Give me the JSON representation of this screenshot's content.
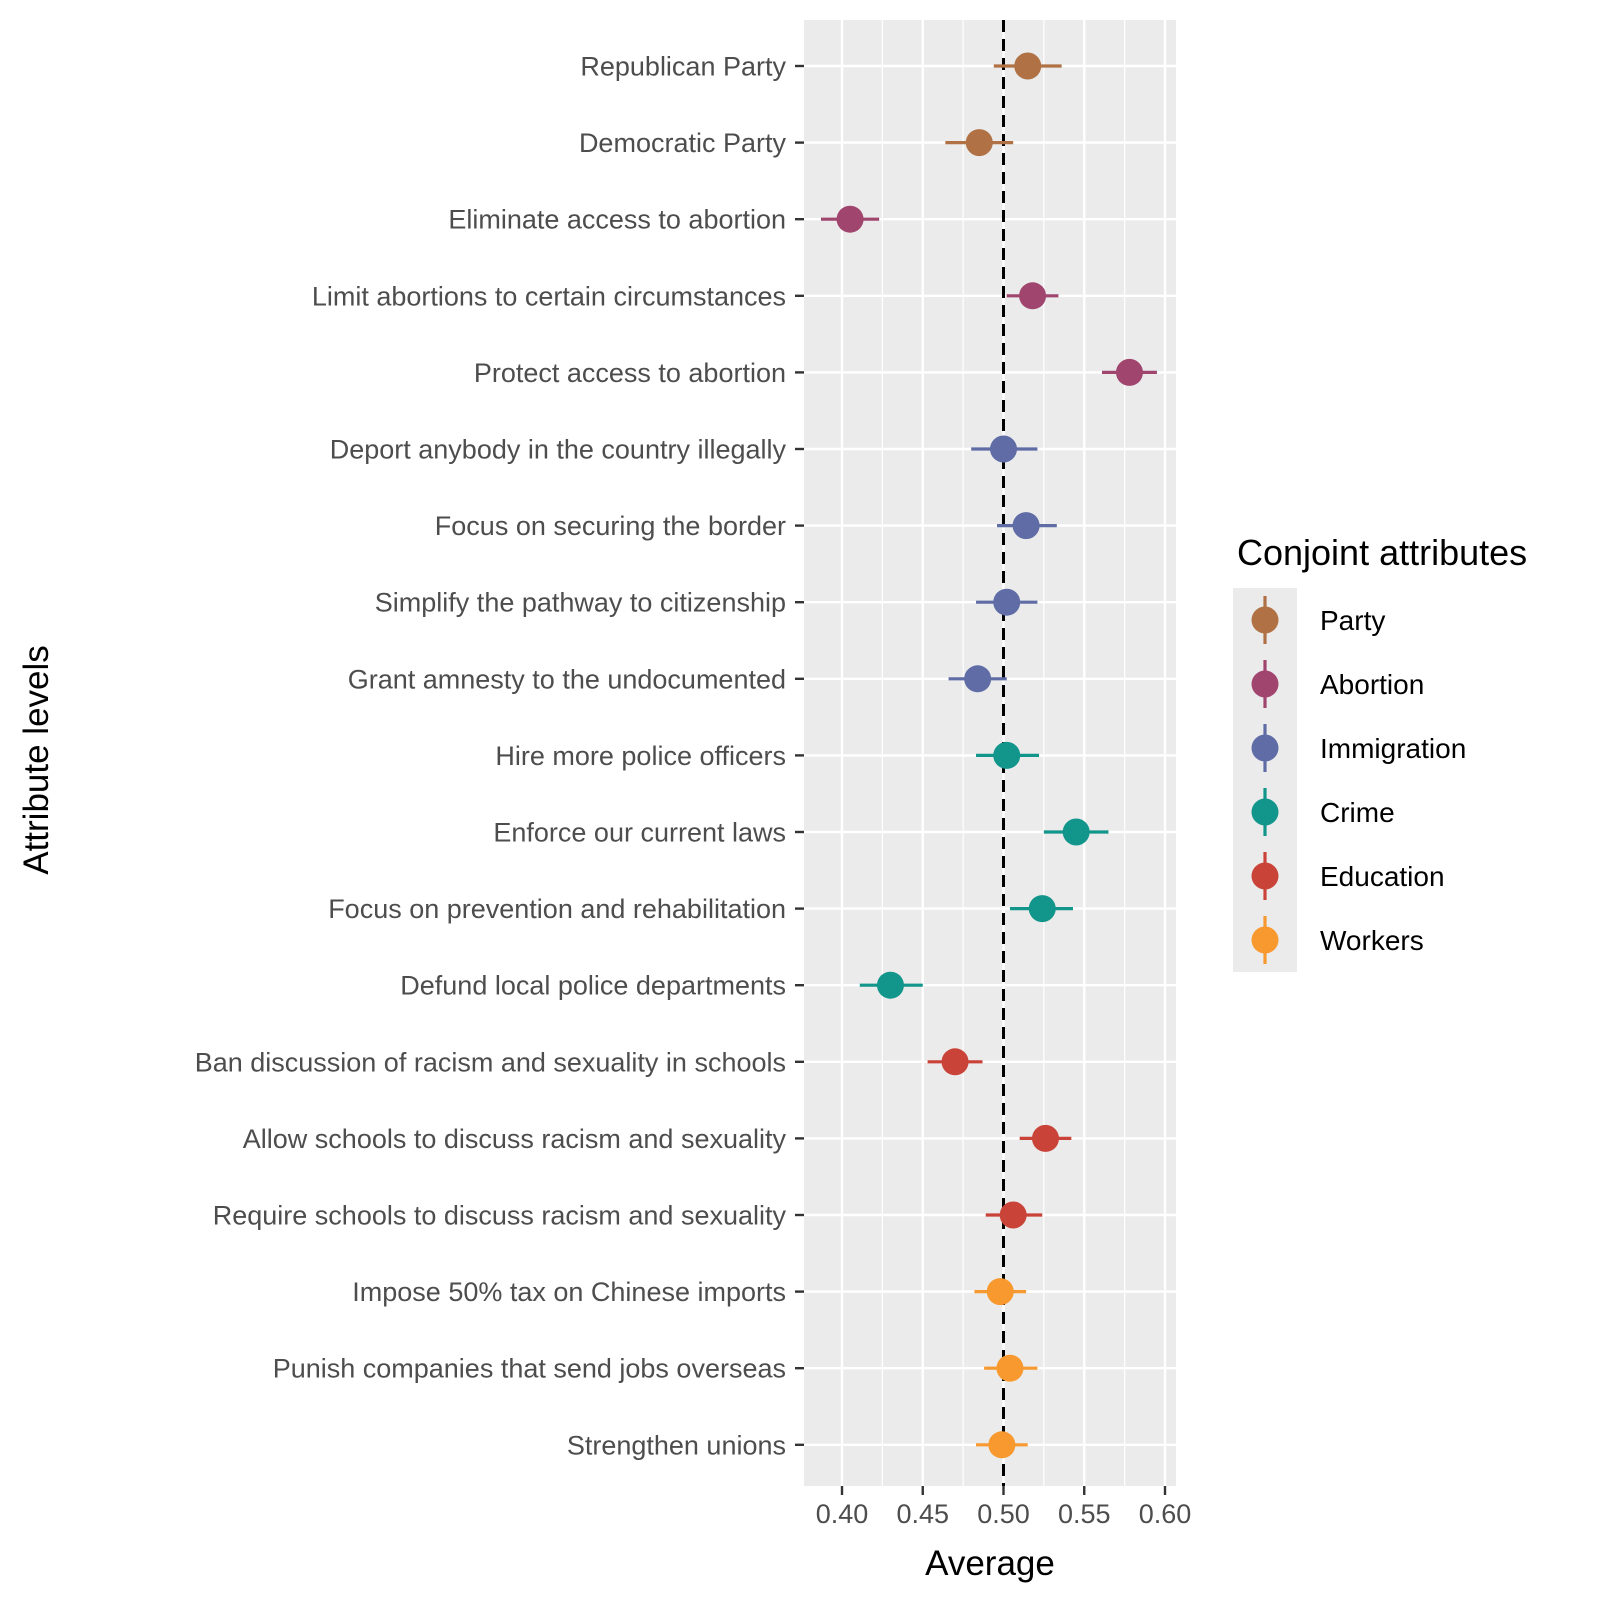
{
  "chart_data": {
    "type": "dot-errorbar",
    "xlabel": "Average",
    "ylabel": "Attribute levels",
    "xlim": [
      0.38,
      0.605
    ],
    "x_ticks": [
      0.4,
      0.45,
      0.5,
      0.55,
      0.6
    ],
    "x_tick_labels": [
      "0.40",
      "0.45",
      "0.50",
      "0.55",
      "0.60"
    ],
    "reference_line": 0.5,
    "grid": true,
    "legend": {
      "title": "Conjoint attributes",
      "placement": "right",
      "entries": [
        {
          "name": "Party",
          "color": "#B07245"
        },
        {
          "name": "Abortion",
          "color": "#A0456E"
        },
        {
          "name": "Immigration",
          "color": "#5F6CA6"
        },
        {
          "name": "Crime",
          "color": "#12958A"
        },
        {
          "name": "Education",
          "color": "#C94338"
        },
        {
          "name": "Workers",
          "color": "#F7992E"
        }
      ]
    },
    "points": [
      {
        "label": "Republican Party",
        "group": "Party",
        "value": 0.515,
        "low": 0.494,
        "high": 0.536
      },
      {
        "label": "Democratic Party",
        "group": "Party",
        "value": 0.485,
        "low": 0.464,
        "high": 0.506
      },
      {
        "label": "Eliminate access to abortion",
        "group": "Abortion",
        "value": 0.405,
        "low": 0.387,
        "high": 0.423
      },
      {
        "label": "Limit abortions to certain circumstances",
        "group": "Abortion",
        "value": 0.518,
        "low": 0.502,
        "high": 0.534
      },
      {
        "label": "Protect access to abortion",
        "group": "Abortion",
        "value": 0.578,
        "low": 0.561,
        "high": 0.595
      },
      {
        "label": "Deport anybody in the country illegally",
        "group": "Immigration",
        "value": 0.5,
        "low": 0.48,
        "high": 0.521
      },
      {
        "label": "Focus on securing the border",
        "group": "Immigration",
        "value": 0.514,
        "low": 0.496,
        "high": 0.533
      },
      {
        "label": "Simplify the pathway to citizenship",
        "group": "Immigration",
        "value": 0.502,
        "low": 0.483,
        "high": 0.521
      },
      {
        "label": "Grant amnesty to the undocumented",
        "group": "Immigration",
        "value": 0.484,
        "low": 0.466,
        "high": 0.502
      },
      {
        "label": "Hire more police officers",
        "group": "Crime",
        "value": 0.502,
        "low": 0.483,
        "high": 0.522
      },
      {
        "label": "Enforce our current laws",
        "group": "Crime",
        "value": 0.545,
        "low": 0.525,
        "high": 0.565
      },
      {
        "label": "Focus on prevention and rehabilitation",
        "group": "Crime",
        "value": 0.524,
        "low": 0.504,
        "high": 0.543
      },
      {
        "label": "Defund local police departments",
        "group": "Crime",
        "value": 0.43,
        "low": 0.411,
        "high": 0.45
      },
      {
        "label": "Ban discussion of racism and sexuality in schools",
        "group": "Education",
        "value": 0.47,
        "low": 0.453,
        "high": 0.487
      },
      {
        "label": "Allow schools to discuss racism and sexuality",
        "group": "Education",
        "value": 0.526,
        "low": 0.51,
        "high": 0.542
      },
      {
        "label": "Require schools to discuss racism and sexuality",
        "group": "Education",
        "value": 0.506,
        "low": 0.489,
        "high": 0.524
      },
      {
        "label": "Impose 50% tax on Chinese imports",
        "group": "Workers",
        "value": 0.498,
        "low": 0.482,
        "high": 0.514
      },
      {
        "label": "Punish companies that send jobs overseas",
        "group": "Workers",
        "value": 0.504,
        "low": 0.488,
        "high": 0.521
      },
      {
        "label": "Strengthen unions",
        "group": "Workers",
        "value": 0.499,
        "low": 0.483,
        "high": 0.515
      }
    ]
  }
}
